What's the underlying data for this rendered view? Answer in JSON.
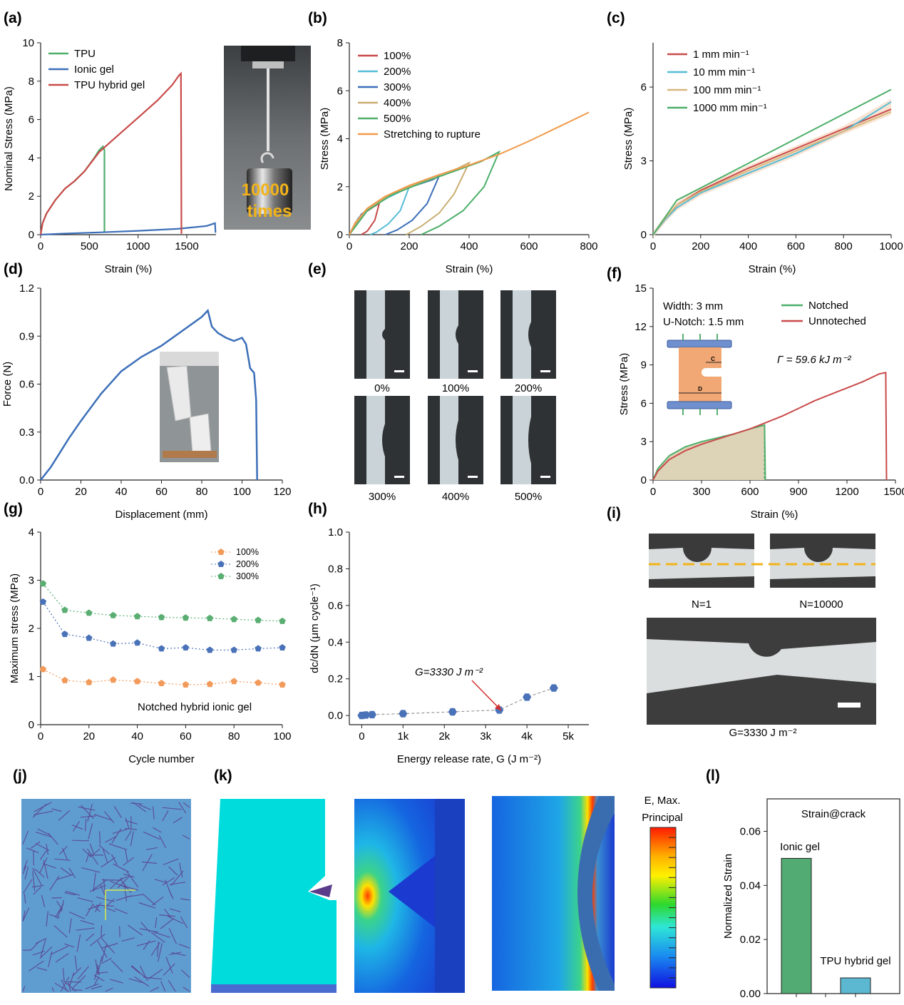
{
  "panel_labels": [
    "(a)",
    "(b)",
    "(c)",
    "(d)",
    "(e)",
    "(f)",
    "(g)",
    "(h)",
    "(i)",
    "(j)",
    "(k)",
    "(l)"
  ],
  "chart_data": [
    {
      "id": "a",
      "type": "line",
      "xlabel": "Strain (%)",
      "ylabel": "Nominal Stress (MPa)",
      "xlim": [
        0,
        1800
      ],
      "ylim": [
        0,
        10
      ],
      "xticks": [
        0,
        500,
        1000,
        1500
      ],
      "yticks": [
        0,
        2,
        4,
        6,
        8,
        10
      ],
      "legend": "top-left",
      "series": [
        {
          "name": "TPU",
          "color": "#4daf6a",
          "x": [
            0,
            20,
            60,
            150,
            250,
            350,
            450,
            550,
            600,
            640,
            655,
            655
          ],
          "y": [
            0,
            0.6,
            1.1,
            1.8,
            2.4,
            2.8,
            3.3,
            4.0,
            4.4,
            4.6,
            4.4,
            0.1
          ]
        },
        {
          "name": "Ionic gel",
          "color": "#3c6fb8",
          "x": [
            0,
            200,
            600,
            1000,
            1400,
            1700,
            1790,
            1795
          ],
          "y": [
            0,
            0.05,
            0.12,
            0.2,
            0.3,
            0.45,
            0.6,
            0.1
          ]
        },
        {
          "name": "TPU hybrid gel",
          "color": "#c94a4a",
          "x": [
            0,
            20,
            60,
            150,
            250,
            350,
            450,
            600,
            800,
            1000,
            1200,
            1350,
            1420,
            1440,
            1445
          ],
          "y": [
            0,
            0.6,
            1.1,
            1.8,
            2.4,
            2.8,
            3.3,
            4.3,
            5.2,
            6.1,
            7.0,
            7.8,
            8.3,
            8.4,
            0.05
          ]
        }
      ],
      "inset_text": [
        "10000",
        "times"
      ]
    },
    {
      "id": "b",
      "type": "line",
      "xlabel": "Strain (%)",
      "ylabel": "Stress (MPa)",
      "xlim": [
        0,
        800
      ],
      "ylim": [
        0,
        8
      ],
      "xticks": [
        0,
        200,
        400,
        600,
        800
      ],
      "yticks": [
        0,
        2,
        4,
        6,
        8
      ],
      "legend": "top-left",
      "series": [
        {
          "name": "100%",
          "color": "#c94a4a",
          "x": [
            0,
            20,
            50,
            80,
            100,
            85,
            60,
            40
          ],
          "y": [
            0,
            0.5,
            0.9,
            1.15,
            1.3,
            0.6,
            0.15,
            0
          ]
        },
        {
          "name": "200%",
          "color": "#55bcd6",
          "x": [
            0,
            30,
            80,
            130,
            180,
            200,
            170,
            130,
            90,
            70
          ],
          "y": [
            0,
            0.7,
            1.2,
            1.55,
            1.85,
            2.0,
            1.0,
            0.45,
            0.1,
            0
          ]
        },
        {
          "name": "300%",
          "color": "#3c6fb8",
          "x": [
            0,
            40,
            100,
            160,
            220,
            280,
            300,
            260,
            210,
            160,
            120
          ],
          "y": [
            0,
            0.85,
            1.4,
            1.8,
            2.05,
            2.3,
            2.45,
            1.3,
            0.6,
            0.2,
            0
          ]
        },
        {
          "name": "400%",
          "color": "#c9ae72",
          "x": [
            0,
            50,
            120,
            200,
            280,
            360,
            400,
            350,
            300,
            240,
            190
          ],
          "y": [
            0,
            0.95,
            1.55,
            2.0,
            2.4,
            2.75,
            3.0,
            1.7,
            0.9,
            0.35,
            0
          ]
        },
        {
          "name": "500%",
          "color": "#4daf6a",
          "x": [
            0,
            60,
            140,
            240,
            340,
            440,
            500,
            450,
            380,
            300,
            240
          ],
          "y": [
            0,
            1.0,
            1.65,
            2.15,
            2.6,
            3.05,
            3.45,
            2.0,
            1.0,
            0.35,
            0
          ]
        },
        {
          "name": "Stretching to rupture",
          "color": "#f29a4a",
          "x": [
            0,
            20,
            60,
            120,
            200,
            300,
            400,
            500,
            600,
            700,
            800
          ],
          "y": [
            0,
            0.5,
            1.1,
            1.6,
            2.05,
            2.5,
            2.9,
            3.35,
            3.9,
            4.5,
            5.1
          ]
        }
      ]
    },
    {
      "id": "c",
      "type": "line",
      "xlabel": "Strain (%)",
      "ylabel": "Stress (MPa)",
      "xlim": [
        0,
        1000
      ],
      "ylim": [
        0,
        7.8
      ],
      "xticks": [
        0,
        200,
        400,
        600,
        800,
        1000
      ],
      "yticks": [
        0,
        3,
        6
      ],
      "legend": "top-left",
      "series": [
        {
          "name": "1 mm min⁻¹",
          "color": "#c94a4a",
          "x": [
            0,
            50,
            100,
            200,
            400,
            600,
            800,
            1000
          ],
          "y": [
            0,
            0.6,
            1.2,
            1.8,
            2.7,
            3.5,
            4.3,
            5.1
          ]
        },
        {
          "name": "10 mm min⁻¹",
          "color": "#55bcd6",
          "x": [
            0,
            50,
            100,
            200,
            400,
            600,
            800,
            1000
          ],
          "y": [
            0,
            0.6,
            1.1,
            1.7,
            2.5,
            3.3,
            4.2,
            5.4
          ]
        },
        {
          "name": "100 mm min⁻¹",
          "color": "#d8b77c",
          "x": [
            0,
            50,
            100,
            200,
            400,
            600,
            800,
            1000
          ],
          "y": [
            0,
            0.65,
            1.2,
            1.75,
            2.6,
            3.4,
            4.2,
            5.0
          ]
        },
        {
          "name": "1000 mm min⁻¹",
          "color": "#4daf6a",
          "x": [
            0,
            50,
            100,
            200,
            400,
            600,
            800,
            1000
          ],
          "y": [
            0,
            0.7,
            1.4,
            1.9,
            2.9,
            3.9,
            4.9,
            5.9
          ]
        }
      ]
    },
    {
      "id": "d",
      "type": "line",
      "xlabel": "Displacement (mm)",
      "ylabel": "Force (N)",
      "xlim": [
        0,
        120
      ],
      "ylim": [
        0,
        1.2
      ],
      "xticks": [
        0,
        20,
        40,
        60,
        80,
        100,
        120
      ],
      "yticks": [
        0.0,
        0.3,
        0.6,
        0.9,
        1.2
      ],
      "series": [
        {
          "name": "",
          "color": "#3c6fb8",
          "x": [
            0,
            5,
            10,
            14,
            20,
            30,
            40,
            50,
            60,
            70,
            80,
            83,
            85,
            88,
            92,
            96,
            100,
            102,
            104,
            106,
            107,
            107.5
          ],
          "y": [
            0,
            0.08,
            0.18,
            0.26,
            0.37,
            0.54,
            0.68,
            0.77,
            0.84,
            0.93,
            1.02,
            1.06,
            0.96,
            0.92,
            0.89,
            0.87,
            0.89,
            0.85,
            0.7,
            0.67,
            0.5,
            0.0
          ]
        }
      ]
    },
    {
      "id": "e",
      "type": "image-grid",
      "labels": [
        "0%",
        "100%",
        "200%",
        "300%",
        "400%",
        "500%"
      ]
    },
    {
      "id": "f",
      "type": "area",
      "xlabel": "Strain (%)",
      "ylabel": "Stress (MPa)",
      "xlim": [
        0,
        1500
      ],
      "ylim": [
        0,
        15
      ],
      "xticks": [
        0,
        300,
        600,
        900,
        1200,
        1500
      ],
      "yticks": [
        0,
        3,
        6,
        9,
        12,
        15
      ],
      "legend": "top-right",
      "annotation_lines": [
        "Width: 3 mm",
        "U-Notch: 1.5 mm"
      ],
      "gamma_text": "Γ = 59.6 kJ m⁻²",
      "schematic_labels": [
        "C",
        "D"
      ],
      "series": [
        {
          "name": "Notched",
          "color": "#4daf6a",
          "x": [
            0,
            30,
            100,
            200,
            300,
            400,
            500,
            600,
            690,
            695
          ],
          "y": [
            0,
            0.9,
            1.9,
            2.6,
            3.0,
            3.3,
            3.6,
            4.0,
            4.3,
            0
          ]
        },
        {
          "name": "Unnoteched",
          "color": "#c94a4a",
          "x": [
            0,
            30,
            100,
            200,
            300,
            400,
            500,
            600,
            700,
            800,
            900,
            1000,
            1100,
            1200,
            1300,
            1400,
            1440,
            1445
          ],
          "y": [
            0,
            0.7,
            1.6,
            2.3,
            2.8,
            3.2,
            3.6,
            4.0,
            4.5,
            5.0,
            5.6,
            6.2,
            6.7,
            7.2,
            7.7,
            8.3,
            8.4,
            0
          ]
        }
      ]
    },
    {
      "id": "g",
      "type": "scatter",
      "xlabel": "Cycle number",
      "ylabel": "Maximum stress (MPa)",
      "xlim": [
        0,
        100
      ],
      "ylim": [
        0,
        4
      ],
      "xticks": [
        0,
        20,
        40,
        60,
        80,
        100
      ],
      "yticks": [
        0,
        1,
        2,
        3,
        4
      ],
      "legend": "top-right",
      "annotation": "Notched hybrid ionic gel",
      "series": [
        {
          "name": "100%",
          "color": "#f29a5a",
          "x": [
            1,
            10,
            20,
            30,
            40,
            50,
            60,
            70,
            80,
            90,
            100
          ],
          "y": [
            1.15,
            0.92,
            0.88,
            0.93,
            0.9,
            0.86,
            0.83,
            0.84,
            0.9,
            0.87,
            0.83
          ]
        },
        {
          "name": "200%",
          "color": "#4a72b8",
          "x": [
            1,
            10,
            20,
            30,
            40,
            50,
            60,
            70,
            80,
            90,
            100
          ],
          "y": [
            2.55,
            1.88,
            1.8,
            1.68,
            1.7,
            1.58,
            1.6,
            1.55,
            1.55,
            1.58,
            1.6
          ]
        },
        {
          "name": "300%",
          "color": "#5aae72",
          "x": [
            1,
            10,
            20,
            30,
            40,
            50,
            60,
            70,
            80,
            90,
            100
          ],
          "y": [
            2.93,
            2.38,
            2.32,
            2.27,
            2.25,
            2.23,
            2.22,
            2.21,
            2.19,
            2.17,
            2.15
          ]
        }
      ]
    },
    {
      "id": "h",
      "type": "scatter",
      "xlabel": "Energy release rate, G (J m⁻²)",
      "ylabel": "dc/dN (μm cycle⁻¹)",
      "xlim": [
        -300,
        5500
      ],
      "ylim": [
        -0.05,
        1.0
      ],
      "xticks": [
        0,
        1000,
        2000,
        3000,
        4000,
        5000
      ],
      "xticklabels": [
        "0",
        "1k",
        "2k",
        "3k",
        "4k",
        "5k"
      ],
      "yticks": [
        0.0,
        0.2,
        0.4,
        0.6,
        0.8,
        1.0
      ],
      "annotation": "G=3330 J m⁻²",
      "series": [
        {
          "name": "",
          "color": "#4a72b8",
          "x": [
            0,
            100,
            250,
            1000,
            2200,
            3330,
            4000,
            4650
          ],
          "y": [
            0.0,
            0.003,
            0.005,
            0.01,
            0.02,
            0.03,
            0.1,
            0.15
          ]
        }
      ]
    },
    {
      "id": "i",
      "type": "image",
      "labels": [
        "N=1",
        "N=10000",
        "G=3330 J m⁻²"
      ]
    },
    {
      "id": "j",
      "type": "image"
    },
    {
      "id": "k",
      "type": "image",
      "legend_title": [
        "E, Max.",
        "Principal"
      ]
    },
    {
      "id": "l",
      "type": "bar",
      "title": "Strain@crack",
      "ylabel": "Normalized Strain",
      "ylim": [
        0,
        0.072
      ],
      "yticks": [
        0.0,
        0.02,
        0.04,
        0.06
      ],
      "categories": [
        "Ionic gel",
        "TPU hybrid gel"
      ],
      "values": [
        0.05,
        0.0058
      ],
      "colors": [
        "#52ab72",
        "#5bb8d0"
      ]
    }
  ]
}
